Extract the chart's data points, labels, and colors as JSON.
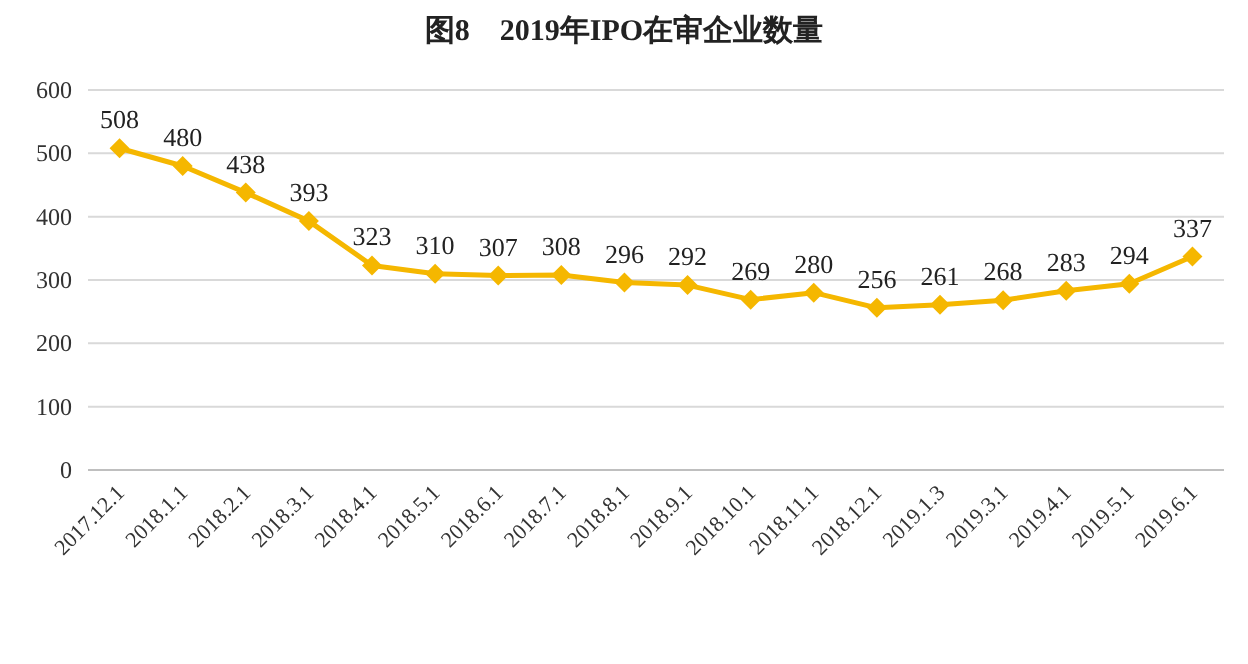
{
  "chart_data": {
    "type": "line",
    "title": "图8　2019年IPO在审企业数量",
    "categories": [
      "2017.12.1",
      "2018.1.1",
      "2018.2.1",
      "2018.3.1",
      "2018.4.1",
      "2018.5.1",
      "2018.6.1",
      "2018.7.1",
      "2018.8.1",
      "2018.9.1",
      "2018.10.1",
      "2018.11.1",
      "2018.12.1",
      "2019.1.3",
      "2019.3.1",
      "2019.4.1",
      "2019.5.1",
      "2019.6.1"
    ],
    "values": [
      508,
      480,
      438,
      393,
      323,
      310,
      307,
      308,
      296,
      292,
      269,
      280,
      256,
      261,
      268,
      283,
      294,
      337
    ],
    "color": "#f5b700",
    "marker": "diamond",
    "ylim": [
      0,
      600
    ],
    "yticks": [
      0,
      100,
      200,
      300,
      400,
      500,
      600
    ],
    "grid": "y",
    "data_labels": true
  }
}
